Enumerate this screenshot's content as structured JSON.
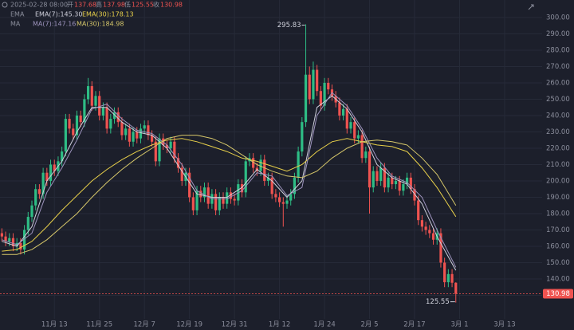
{
  "header": {
    "time": "2025-02-28 08:00",
    "open_label": "开",
    "open": "137.68",
    "high_label": "高",
    "high": "137.98",
    "low_label": "低",
    "low": "125.55",
    "close_label": "收",
    "close": "130.98",
    "ema_label": "EMA",
    "ma_label": "MA"
  },
  "chart_data": {
    "type": "candlestick",
    "x": [
      0,
      1,
      2,
      3,
      4,
      5,
      6,
      7,
      8,
      9,
      10,
      11,
      12,
      13,
      14,
      15,
      16,
      17,
      18,
      19,
      20,
      21,
      22,
      23,
      24,
      25,
      26,
      27,
      28,
      29,
      30,
      31,
      32,
      33,
      34,
      35,
      36,
      37,
      38,
      39,
      40,
      41,
      42,
      43,
      44,
      45,
      46,
      47,
      48,
      49,
      50,
      51,
      52,
      53,
      54,
      55,
      56,
      57,
      58,
      59,
      60,
      61,
      62,
      63,
      64,
      65,
      66,
      67,
      68,
      69,
      70,
      71,
      72,
      73,
      74,
      75,
      76,
      77,
      78,
      79,
      80,
      81,
      82,
      83,
      84,
      85,
      86,
      87,
      88,
      89,
      90,
      91,
      92,
      93,
      94,
      95,
      96,
      97,
      98,
      99,
      100,
      101,
      102,
      103,
      104,
      105,
      106,
      107,
      108,
      109,
      110,
      111,
      112,
      113,
      114,
      115,
      116,
      117,
      118,
      119,
      120,
      121
    ],
    "open": [
      168,
      166,
      163,
      165,
      160,
      162,
      158,
      170,
      178,
      185,
      195,
      192,
      205,
      200,
      210,
      206,
      212,
      218,
      238,
      232,
      228,
      240,
      236,
      250,
      258,
      246,
      252,
      240,
      245,
      232,
      238,
      242,
      236,
      228,
      232,
      224,
      230,
      226,
      232,
      234,
      228,
      224,
      212,
      226,
      222,
      220,
      224,
      214,
      208,
      200,
      205,
      190,
      182,
      194,
      190,
      196,
      186,
      192,
      182,
      190,
      186,
      193,
      189,
      188,
      198,
      193,
      212,
      214,
      208,
      206,
      213,
      200,
      202,
      192,
      190,
      187,
      186,
      188,
      192,
      202,
      218,
      236,
      265,
      250,
      268,
      255,
      246,
      260,
      256,
      252,
      248,
      240,
      244,
      232,
      236,
      226,
      228,
      214,
      218,
      196,
      206,
      200,
      208,
      196,
      202,
      198,
      200,
      194,
      198,
      202,
      195,
      188,
      176,
      172,
      170,
      168,
      164,
      168,
      150,
      138,
      143,
      137.68
    ],
    "high": [
      171,
      169,
      168,
      168,
      165,
      165,
      173,
      181,
      188,
      198,
      198,
      208,
      208,
      213,
      213,
      215,
      221,
      241,
      241,
      235,
      243,
      243,
      253,
      263,
      261,
      255,
      255,
      248,
      248,
      241,
      245,
      245,
      239,
      235,
      235,
      233,
      233,
      235,
      237,
      237,
      231,
      227,
      229,
      229,
      225,
      227,
      227,
      217,
      211,
      208,
      208,
      193,
      197,
      197,
      199,
      199,
      195,
      195,
      193,
      193,
      196,
      196,
      192,
      201,
      201,
      215,
      217,
      217,
      211,
      216,
      216,
      205,
      205,
      195,
      193,
      190,
      191,
      195,
      205,
      221,
      239,
      295.83,
      270,
      273,
      271,
      258,
      263,
      263,
      259,
      255,
      251,
      247,
      247,
      239,
      239,
      231,
      231,
      221,
      221,
      209,
      209,
      211,
      211,
      205,
      205,
      203,
      203,
      201,
      205,
      205,
      198,
      191,
      179,
      175,
      173,
      171,
      171,
      171,
      153,
      146,
      146,
      137.98
    ],
    "low": [
      163,
      160,
      160,
      157,
      157,
      155,
      155,
      167,
      175,
      182,
      189,
      189,
      197,
      197,
      203,
      203,
      209,
      215,
      229,
      225,
      225,
      233,
      233,
      247,
      243,
      243,
      237,
      237,
      229,
      229,
      235,
      233,
      225,
      225,
      221,
      221,
      223,
      223,
      229,
      225,
      221,
      209,
      209,
      219,
      217,
      217,
      211,
      205,
      197,
      197,
      187,
      179,
      179,
      187,
      187,
      183,
      183,
      179,
      179,
      183,
      183,
      186,
      185,
      185,
      190,
      190,
      209,
      205,
      203,
      203,
      197,
      197,
      189,
      187,
      184,
      172,
      183,
      185,
      189,
      199,
      215,
      233,
      247,
      247,
      252,
      243,
      243,
      253,
      249,
      245,
      237,
      237,
      229,
      229,
      223,
      223,
      211,
      211,
      180,
      193,
      197,
      197,
      193,
      193,
      195,
      195,
      191,
      191,
      195,
      192,
      185,
      173,
      169,
      167,
      165,
      161,
      161,
      147,
      135,
      135,
      135,
      125.55
    ],
    "close": [
      166,
      163,
      165,
      160,
      162,
      158,
      170,
      178,
      185,
      195,
      192,
      205,
      200,
      210,
      206,
      212,
      218,
      238,
      232,
      228,
      240,
      236,
      250,
      258,
      246,
      252,
      240,
      245,
      232,
      238,
      242,
      236,
      228,
      232,
      224,
      230,
      226,
      232,
      234,
      228,
      224,
      212,
      226,
      222,
      220,
      224,
      214,
      208,
      200,
      205,
      190,
      182,
      194,
      190,
      196,
      186,
      192,
      182,
      190,
      186,
      193,
      189,
      188,
      198,
      193,
      212,
      214,
      208,
      206,
      213,
      200,
      202,
      192,
      190,
      187,
      186,
      188,
      192,
      202,
      218,
      236,
      265,
      250,
      268,
      255,
      246,
      260,
      256,
      252,
      248,
      240,
      244,
      232,
      236,
      226,
      228,
      214,
      218,
      196,
      206,
      200,
      208,
      196,
      202,
      198,
      200,
      194,
      198,
      202,
      195,
      188,
      176,
      172,
      170,
      168,
      164,
      168,
      150,
      138,
      143,
      137.68,
      130.98
    ],
    "up_color": "#2ebd85",
    "down_color": "#ef5350",
    "line_x": [
      0,
      4,
      8,
      12,
      16,
      20,
      24,
      28,
      32,
      36,
      40,
      44,
      48,
      52,
      56,
      60,
      64,
      68,
      72,
      76,
      80,
      84,
      88,
      92,
      96,
      100,
      104,
      108,
      112,
      116,
      121
    ],
    "lines": [
      {
        "name": "EMA(7):145.30",
        "color": "#cfd0dc",
        "values": [
          163,
          160,
          172,
          200,
          212,
          230,
          245,
          245,
          236,
          230,
          228,
          220,
          206,
          192,
          190,
          190,
          196,
          207,
          200,
          190,
          200,
          245,
          252,
          244,
          230,
          210,
          202,
          198,
          186,
          166,
          145.3
        ]
      },
      {
        "name": "EMA(30):178.13",
        "color": "#e8d04a",
        "values": [
          157,
          158,
          163,
          172,
          182,
          191,
          200,
          207,
          213,
          218,
          222,
          225,
          226,
          224,
          221,
          218,
          214,
          212,
          209,
          206,
          210,
          218,
          224,
          226,
          224,
          222,
          221,
          218,
          208,
          196,
          178.13
        ]
      },
      {
        "name": "MA(7):147.16",
        "color": "#9d93bd",
        "values": [
          164,
          161,
          168,
          193,
          208,
          225,
          244,
          247,
          238,
          231,
          229,
          222,
          210,
          194,
          189,
          189,
          194,
          205,
          203,
          191,
          196,
          240,
          254,
          246,
          232,
          214,
          203,
          199,
          190,
          170,
          147.16
        ]
      },
      {
        "name": "MA(30):184.98",
        "color": "#d6c76a",
        "values": [
          155,
          155,
          158,
          164,
          172,
          180,
          190,
          199,
          207,
          214,
          220,
          226,
          228,
          228,
          226,
          222,
          216,
          210,
          206,
          203,
          202,
          206,
          214,
          220,
          224,
          225,
          224,
          222,
          214,
          204,
          184.98
        ]
      }
    ],
    "max_label": "295.83",
    "min_label": "125.55",
    "last_price_label": "130.98",
    "xlim": [
      -0.5,
      144
    ],
    "ylim": [
      115.6,
      310.7
    ],
    "xticks": [
      {
        "value": 14,
        "label": "11月 13"
      },
      {
        "value": 26,
        "label": "11月 25"
      },
      {
        "value": 38,
        "label": "12月 7"
      },
      {
        "value": 50,
        "label": "12月 19"
      },
      {
        "value": 62,
        "label": "12月 31"
      },
      {
        "value": 74,
        "label": "1月 12"
      },
      {
        "value": 86,
        "label": "1月 24"
      },
      {
        "value": 98,
        "label": "2月 5"
      },
      {
        "value": 110,
        "label": "2月 17"
      },
      {
        "value": 122,
        "label": "3月 1"
      },
      {
        "value": 134,
        "label": "3月 13"
      }
    ],
    "yticks": [
      {
        "value": 130,
        "label": "130.00"
      },
      {
        "value": 140,
        "label": "140.00"
      },
      {
        "value": 150,
        "label": "150.00"
      },
      {
        "value": 160,
        "label": "160.00"
      },
      {
        "value": 170,
        "label": "170.00"
      },
      {
        "value": 180,
        "label": "180.00"
      },
      {
        "value": 190,
        "label": "190.00"
      },
      {
        "value": 200,
        "label": "200.00"
      },
      {
        "value": 210,
        "label": "210.00"
      },
      {
        "value": 220,
        "label": "220.00"
      },
      {
        "value": 230,
        "label": "230.00"
      },
      {
        "value": 240,
        "label": "240.00"
      },
      {
        "value": 250,
        "label": "250.00"
      },
      {
        "value": 260,
        "label": "260.00"
      },
      {
        "value": 270,
        "label": "270.00"
      },
      {
        "value": 280,
        "label": "280.00"
      },
      {
        "value": 290,
        "label": "290.00"
      },
      {
        "value": 300,
        "label": "300.00"
      }
    ],
    "grid": true
  }
}
